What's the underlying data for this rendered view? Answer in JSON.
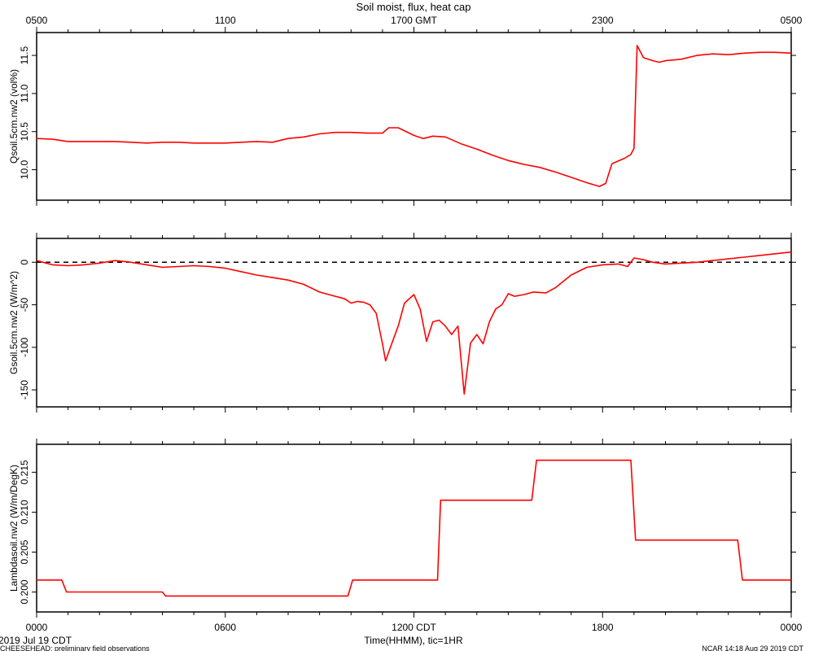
{
  "title": "Soil moist, flux, heat cap",
  "top_axis_ticks": [
    "0500",
    "1100",
    "1700 GMT",
    "2300",
    "0500"
  ],
  "bottom_axis_ticks": [
    "0000",
    "0600",
    "1200 CDT",
    "1800",
    "0000"
  ],
  "xlabel": "Time(HHMM), tic=1HR",
  "date_label": "2019 Jul 19 CDT",
  "footer_left": "CHEESEHEAD: preliminary field observations",
  "footer_right": "NCAR 14:18 Aug 29 2019 CDT",
  "colors": {
    "series": "#ff0000",
    "axis": "#000000"
  },
  "chart_data": [
    {
      "type": "line",
      "ylabel": "Qsoil.5cm.nw2 (vol%)",
      "ylim": [
        9.6,
        11.8
      ],
      "yticks": [
        10.0,
        10.5,
        11.0,
        11.5
      ],
      "xlim": [
        0,
        24
      ],
      "x_unit": "hours since 0000 CDT",
      "series": [
        {
          "x": [
            0,
            0.5,
            1,
            1.5,
            2,
            2.5,
            3,
            3.5,
            4,
            4.5,
            5,
            5.5,
            6,
            6.5,
            7,
            7.5,
            8,
            8.5,
            9,
            9.5,
            10,
            10.5,
            11,
            11.2,
            11.5,
            12,
            12.3,
            12.6,
            13,
            13.5,
            14,
            14.5,
            15,
            15.5,
            16,
            16.5,
            17,
            17.5,
            17.9,
            18.1,
            18.3,
            18.7,
            18.9,
            19.0,
            19.1,
            19.3,
            19.6,
            19.8,
            20,
            20.5,
            21,
            21.5,
            22,
            22.5,
            23,
            23.5,
            24
          ],
          "y": [
            10.41,
            10.4,
            10.37,
            10.37,
            10.37,
            10.37,
            10.36,
            10.35,
            10.36,
            10.36,
            10.35,
            10.35,
            10.35,
            10.36,
            10.37,
            10.36,
            10.41,
            10.43,
            10.47,
            10.49,
            10.49,
            10.48,
            10.48,
            10.55,
            10.55,
            10.45,
            10.41,
            10.44,
            10.43,
            10.34,
            10.27,
            10.19,
            10.12,
            10.07,
            10.03,
            9.97,
            9.9,
            9.83,
            9.78,
            9.82,
            10.08,
            10.15,
            10.2,
            10.28,
            11.63,
            11.47,
            11.43,
            11.41,
            11.43,
            11.45,
            11.5,
            11.52,
            11.51,
            11.53,
            11.54,
            11.54,
            11.53
          ]
        }
      ]
    },
    {
      "type": "line",
      "ylabel": "Gsoil.5cm.nw2 (W/m^2)",
      "ylim": [
        -170,
        28
      ],
      "yticks": [
        0,
        -50,
        -100,
        -150
      ],
      "zero_line": "dashed",
      "xlim": [
        0,
        24
      ],
      "x_unit": "hours since 0000 CDT",
      "series": [
        {
          "x": [
            0,
            0.5,
            1,
            1.5,
            2,
            2.5,
            3,
            3.5,
            4,
            4.5,
            5,
            5.5,
            6,
            6.5,
            7,
            7.5,
            8,
            8.5,
            9,
            9.5,
            9.8,
            10,
            10.2,
            10.4,
            10.6,
            10.8,
            11,
            11.1,
            11.3,
            11.5,
            11.7,
            12,
            12.2,
            12.4,
            12.6,
            12.8,
            13,
            13.2,
            13.4,
            13.6,
            13.8,
            14,
            14.2,
            14.4,
            14.6,
            14.8,
            15,
            15.2,
            15.5,
            15.8,
            16.2,
            16.5,
            17,
            17.5,
            18,
            18.5,
            18.8,
            19.0,
            19.3,
            19.6,
            20,
            20.5,
            21,
            21.5,
            22,
            22.5,
            23,
            23.5,
            24
          ],
          "y": [
            2,
            -3,
            -4,
            -3,
            -1,
            2,
            0,
            -3,
            -6,
            -5,
            -4,
            -5,
            -7,
            -11,
            -15,
            -18,
            -21,
            -26,
            -35,
            -40,
            -43,
            -48,
            -46,
            -47,
            -50,
            -60,
            -96,
            -116,
            -95,
            -75,
            -48,
            -38,
            -55,
            -93,
            -70,
            -68,
            -75,
            -85,
            -75,
            -155,
            -95,
            -85,
            -96,
            -70,
            -55,
            -50,
            -37,
            -40,
            -38,
            -35,
            -36,
            -30,
            -15,
            -6,
            -3,
            -2,
            -5,
            5,
            3,
            0,
            -2,
            -1,
            0,
            2,
            4,
            6,
            8,
            10,
            12
          ]
        }
      ]
    },
    {
      "type": "line",
      "ylabel": "Lambdasoil.nw2 (W/m/DegK)",
      "ylim": [
        0.1975,
        0.2185
      ],
      "yticks": [
        0.2,
        0.205,
        0.21,
        0.215
      ],
      "xlim": [
        0,
        24
      ],
      "x_unit": "hours since 0000 CDT",
      "series": [
        {
          "x": [
            0,
            0.8,
            0.95,
            4.0,
            4.1,
            9.9,
            10.05,
            12.75,
            12.85,
            15.75,
            15.9,
            18.9,
            19.05,
            22.3,
            22.45,
            24
          ],
          "y": [
            0.2015,
            0.2015,
            0.2,
            0.2,
            0.1995,
            0.1995,
            0.2015,
            0.2015,
            0.2115,
            0.2115,
            0.2165,
            0.2165,
            0.2065,
            0.2065,
            0.2015,
            0.2015
          ]
        }
      ]
    }
  ]
}
